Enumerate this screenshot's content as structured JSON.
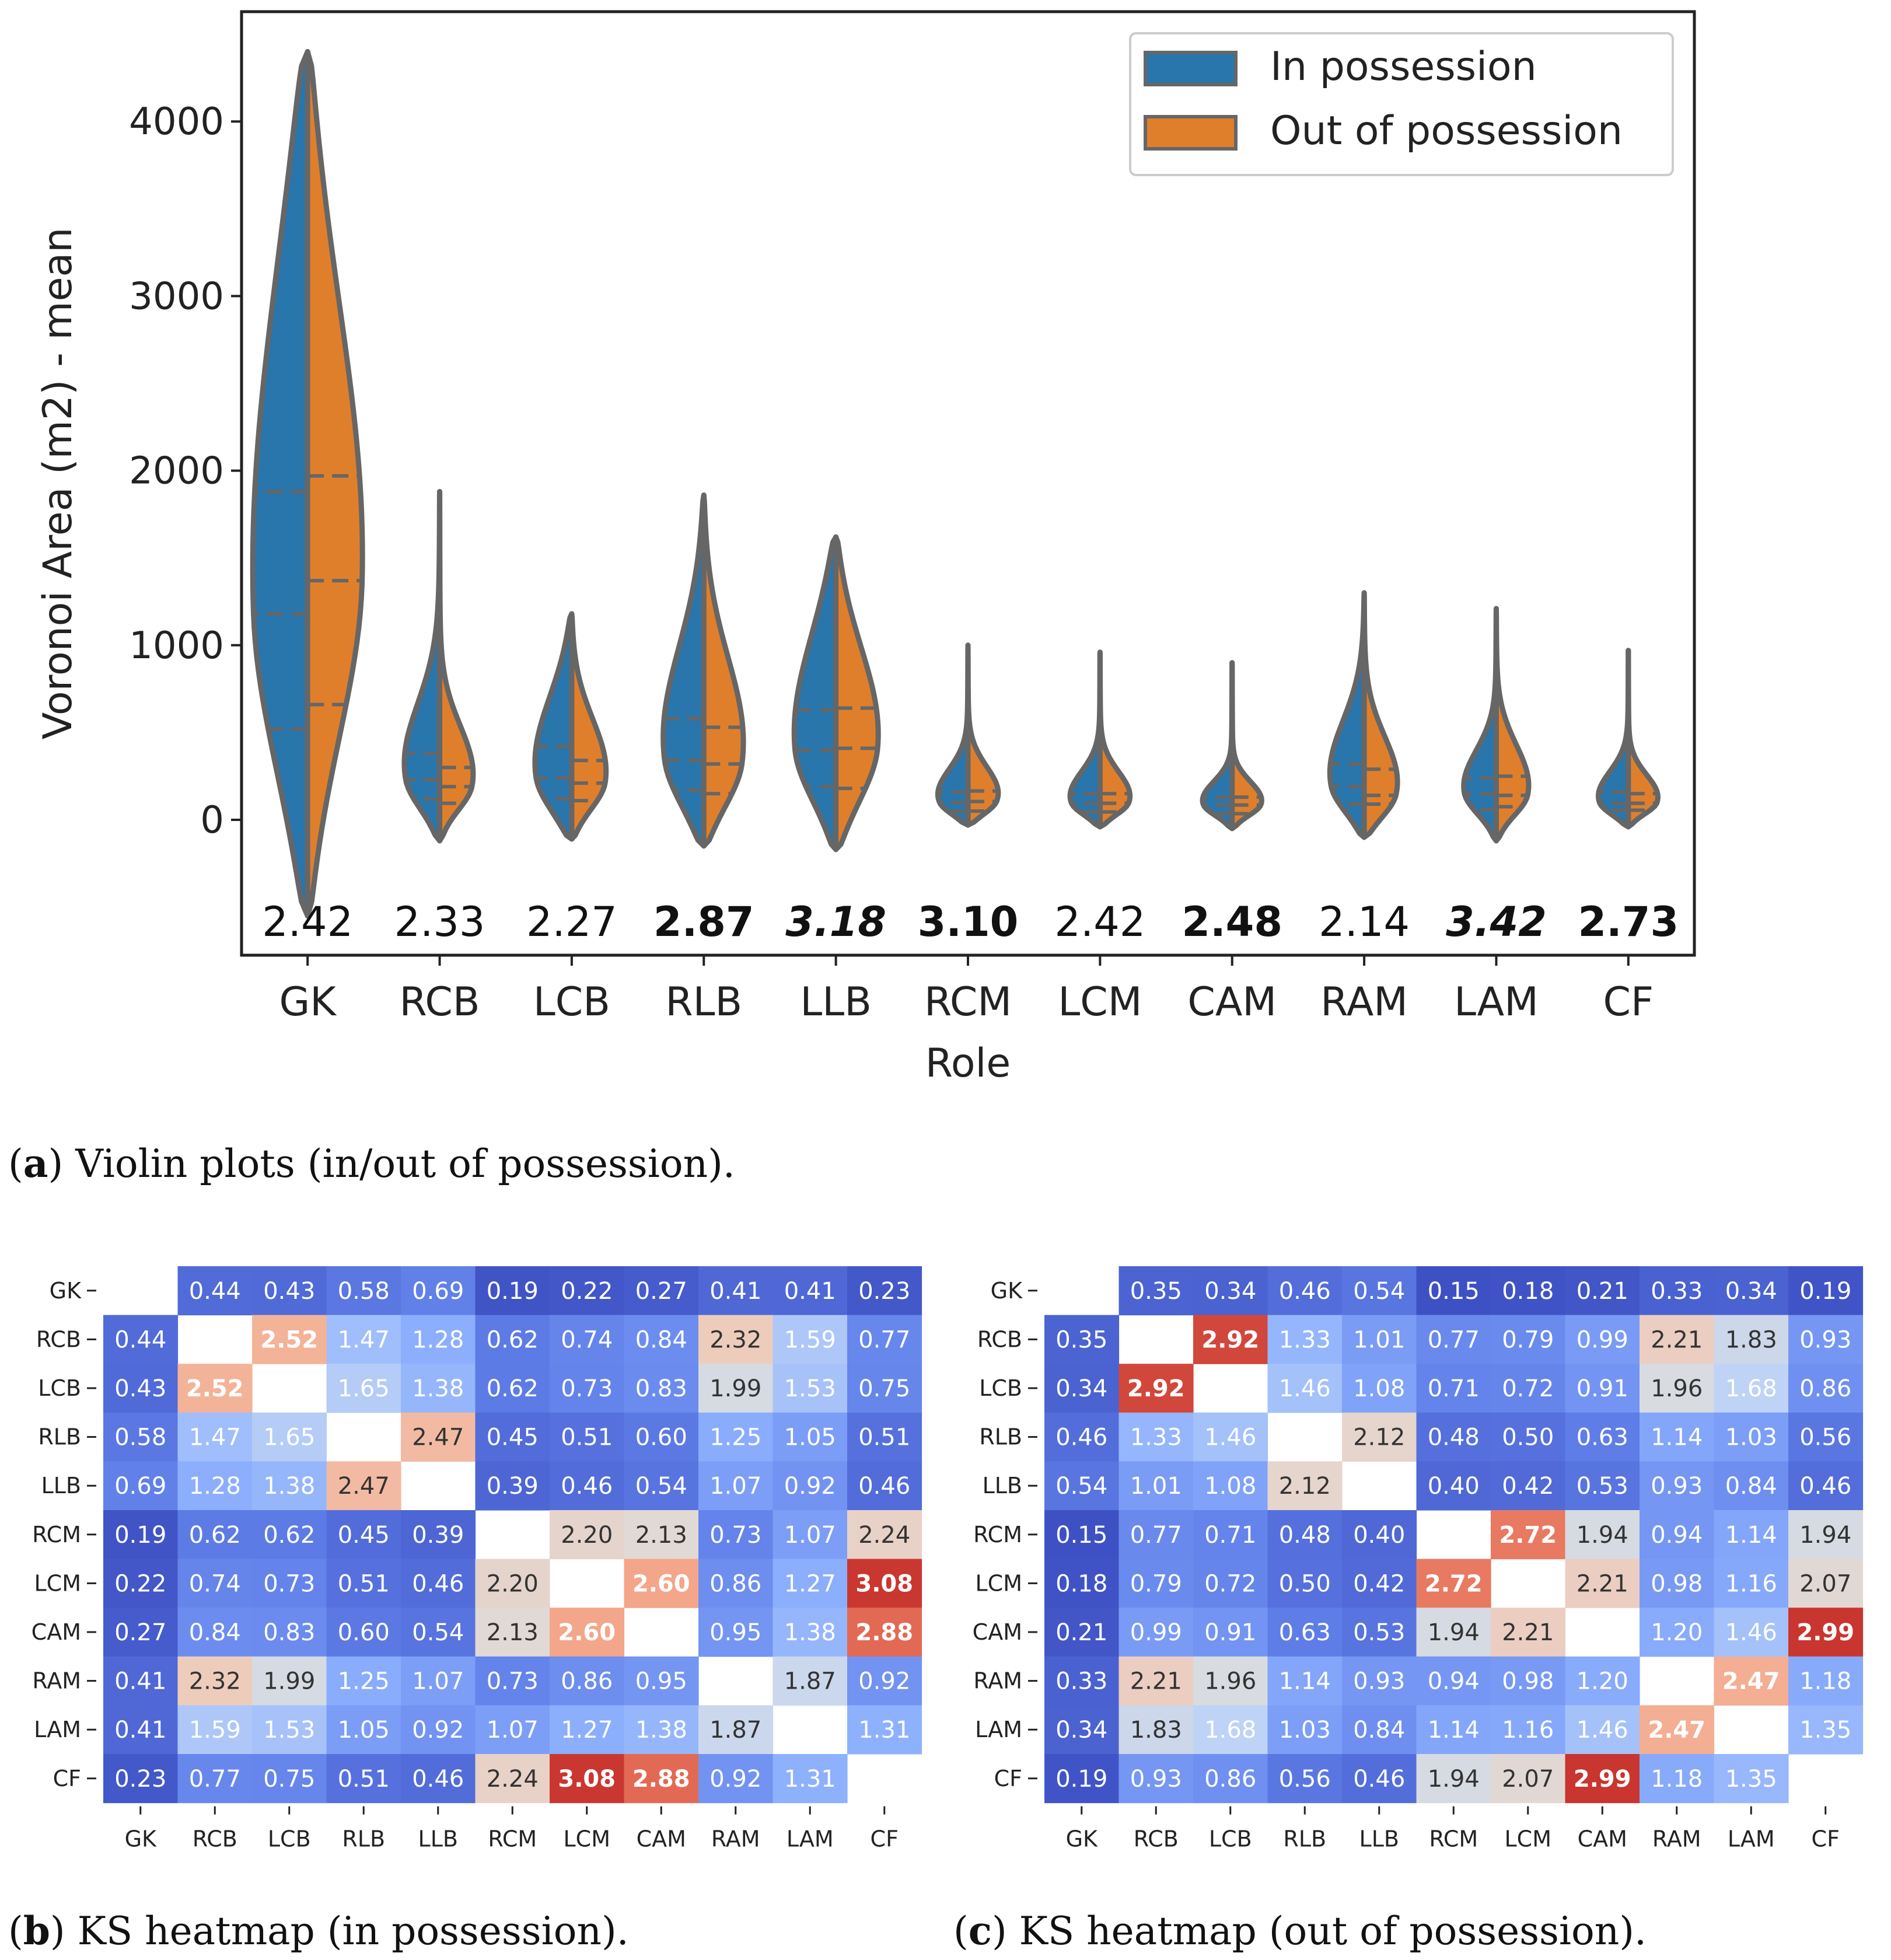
{
  "chart_data": [
    {
      "type": "violin",
      "title": "",
      "xlabel": "Role",
      "ylabel": "Voronoi Area (m2) - mean",
      "ylim": [
        -800,
        4600
      ],
      "yticks": [
        0,
        1000,
        2000,
        3000,
        4000
      ],
      "categories": [
        "GK",
        "RCB",
        "LCB",
        "RLB",
        "LLB",
        "RCM",
        "LCM",
        "CAM",
        "RAM",
        "LAM",
        "CF"
      ],
      "legend": {
        "placement": "top-right",
        "entries": [
          "In possession",
          "Out of possession"
        ]
      },
      "series": [
        {
          "name": "In possession",
          "color": "#2876AC",
          "min": [
            -550,
            -120,
            -110,
            -150,
            -170,
            -30,
            -40,
            -50,
            -100,
            -120,
            -40
          ],
          "q1": [
            520,
            120,
            120,
            170,
            190,
            50,
            45,
            35,
            90,
            60,
            55
          ],
          "median": [
            1180,
            230,
            240,
            340,
            400,
            100,
            95,
            85,
            190,
            150,
            95
          ],
          "q3": [
            1880,
            380,
            420,
            580,
            630,
            160,
            150,
            130,
            320,
            240,
            160
          ],
          "max": [
            4400,
            1880,
            1180,
            1860,
            1620,
            1000,
            960,
            900,
            1300,
            1210,
            970
          ]
        },
        {
          "name": "Out of possession",
          "color": "#E07F2B",
          "min": [
            -550,
            -120,
            -110,
            -150,
            -170,
            -30,
            -40,
            -50,
            -100,
            -120,
            -40
          ],
          "q1": [
            660,
            95,
            110,
            150,
            180,
            50,
            45,
            35,
            90,
            75,
            55
          ],
          "median": [
            1370,
            190,
            210,
            320,
            410,
            105,
            95,
            85,
            140,
            140,
            95
          ],
          "q3": [
            1970,
            300,
            340,
            530,
            640,
            165,
            150,
            130,
            290,
            250,
            150
          ],
          "max": [
            4400,
            1880,
            1180,
            1860,
            1620,
            1000,
            960,
            900,
            1300,
            1210,
            970
          ]
        }
      ],
      "annotations": [
        {
          "text": "2.42",
          "style": "normal"
        },
        {
          "text": "2.33",
          "style": "normal"
        },
        {
          "text": "2.27",
          "style": "normal"
        },
        {
          "text": "2.87",
          "style": "bold"
        },
        {
          "text": "3.18",
          "style": "bold-italic"
        },
        {
          "text": "3.10",
          "style": "bold"
        },
        {
          "text": "2.42",
          "style": "normal"
        },
        {
          "text": "2.48",
          "style": "bold"
        },
        {
          "text": "2.14",
          "style": "normal"
        },
        {
          "text": "3.42",
          "style": "bold-italic"
        },
        {
          "text": "2.73",
          "style": "bold"
        }
      ]
    },
    {
      "type": "heatmap",
      "title": "KS heatmap (in possession)",
      "rows": [
        "GK",
        "RCB",
        "LCB",
        "RLB",
        "LLB",
        "RCM",
        "LCM",
        "CAM",
        "RAM",
        "LAM",
        "CF"
      ],
      "cols": [
        "GK",
        "RCB",
        "LCB",
        "RLB",
        "LLB",
        "RCM",
        "LCM",
        "CAM",
        "RAM",
        "LAM",
        "CF"
      ],
      "values": [
        [
          null,
          "0.44",
          "0.43",
          "0.58",
          "0.69",
          "0.19",
          "0.22",
          "0.27",
          "0.41",
          "0.41",
          "0.23"
        ],
        [
          "0.44",
          null,
          "2.52",
          "1.47",
          "1.28",
          "0.62",
          "0.74",
          "0.84",
          "2.32",
          "1.59",
          "0.77"
        ],
        [
          "0.43",
          "2.52",
          null,
          "1.65",
          "1.38",
          "0.62",
          "0.73",
          "0.83",
          "1.99",
          "1.53",
          "0.75"
        ],
        [
          "0.58",
          "1.47",
          "1.65",
          null,
          "2.47",
          "0.45",
          "0.51",
          "0.60",
          "1.25",
          "1.05",
          "0.51"
        ],
        [
          "0.69",
          "1.28",
          "1.38",
          "2.47",
          null,
          "0.39",
          "0.46",
          "0.54",
          "1.07",
          "0.92",
          "0.46"
        ],
        [
          "0.19",
          "0.62",
          "0.62",
          "0.45",
          "0.39",
          null,
          "2.20",
          "2.13",
          "0.73",
          "1.07",
          "2.24"
        ],
        [
          "0.22",
          "0.74",
          "0.73",
          "0.51",
          "0.46",
          "2.20",
          null,
          "2.60",
          "0.86",
          "1.27",
          "3.08"
        ],
        [
          "0.27",
          "0.84",
          "0.83",
          "0.60",
          "0.54",
          "2.13",
          "2.60",
          null,
          "0.95",
          "1.38",
          "2.88"
        ],
        [
          "0.41",
          "2.32",
          "1.99",
          "1.25",
          "1.07",
          "0.73",
          "0.86",
          "0.95",
          null,
          "1.87",
          "0.92"
        ],
        [
          "0.41",
          "1.59",
          "1.53",
          "1.05",
          "0.92",
          "1.07",
          "1.27",
          "1.38",
          "1.87",
          null,
          "1.31"
        ],
        [
          "0.23",
          "0.77",
          "0.75",
          "0.51",
          "0.46",
          "2.24",
          "3.08",
          "2.88",
          "0.92",
          "1.31",
          null
        ]
      ],
      "bold_threshold": 2.5,
      "color_range": [
        0.1,
        3.1
      ]
    },
    {
      "type": "heatmap",
      "title": "KS heatmap (out of possession)",
      "rows": [
        "GK",
        "RCB",
        "LCB",
        "RLB",
        "LLB",
        "RCM",
        "LCM",
        "CAM",
        "RAM",
        "LAM",
        "CF"
      ],
      "cols": [
        "GK",
        "RCB",
        "LCB",
        "RLB",
        "LLB",
        "RCM",
        "LCM",
        "CAM",
        "RAM",
        "LAM",
        "CF"
      ],
      "values": [
        [
          null,
          "0.35",
          "0.34",
          "0.46",
          "0.54",
          "0.15",
          "0.18",
          "0.21",
          "0.33",
          "0.34",
          "0.19"
        ],
        [
          "0.35",
          null,
          "2.92",
          "1.33",
          "1.01",
          "0.77",
          "0.79",
          "0.99",
          "2.21",
          "1.83",
          "0.93"
        ],
        [
          "0.34",
          "2.92",
          null,
          "1.46",
          "1.08",
          "0.71",
          "0.72",
          "0.91",
          "1.96",
          "1.68",
          "0.86"
        ],
        [
          "0.46",
          "1.33",
          "1.46",
          null,
          "2.12",
          "0.48",
          "0.50",
          "0.63",
          "1.14",
          "1.03",
          "0.56"
        ],
        [
          "0.54",
          "1.01",
          "1.08",
          "2.12",
          null,
          "0.40",
          "0.42",
          "0.53",
          "0.93",
          "0.84",
          "0.46"
        ],
        [
          "0.15",
          "0.77",
          "0.71",
          "0.48",
          "0.40",
          null,
          "2.72",
          "1.94",
          "0.94",
          "1.14",
          "1.94"
        ],
        [
          "0.18",
          "0.79",
          "0.72",
          "0.50",
          "0.42",
          "2.72",
          null,
          "2.21",
          "0.98",
          "1.16",
          "2.07"
        ],
        [
          "0.21",
          "0.99",
          "0.91",
          "0.63",
          "0.53",
          "1.94",
          "2.21",
          null,
          "1.20",
          "1.46",
          "2.99"
        ],
        [
          "0.33",
          "2.21",
          "1.96",
          "1.14",
          "0.93",
          "0.94",
          "0.98",
          "1.20",
          null,
          "2.47",
          "1.18"
        ],
        [
          "0.34",
          "1.83",
          "1.68",
          "1.03",
          "0.84",
          "1.14",
          "1.16",
          "1.46",
          "2.47",
          null,
          "1.35"
        ],
        [
          "0.19",
          "0.93",
          "0.86",
          "0.56",
          "0.46",
          "1.94",
          "2.07",
          "2.99",
          "1.18",
          "1.35",
          null
        ]
      ],
      "bold_threshold": 2.45,
      "color_range": [
        0.1,
        3.0
      ]
    }
  ],
  "captions": {
    "a": {
      "letter": "a",
      "text": ") Violin plots (in/out of possession)."
    },
    "b": {
      "letter": "b",
      "text": ") KS heatmap (in possession)."
    },
    "c": {
      "letter": "c",
      "text": ") KS heatmap (out of possession)."
    }
  }
}
